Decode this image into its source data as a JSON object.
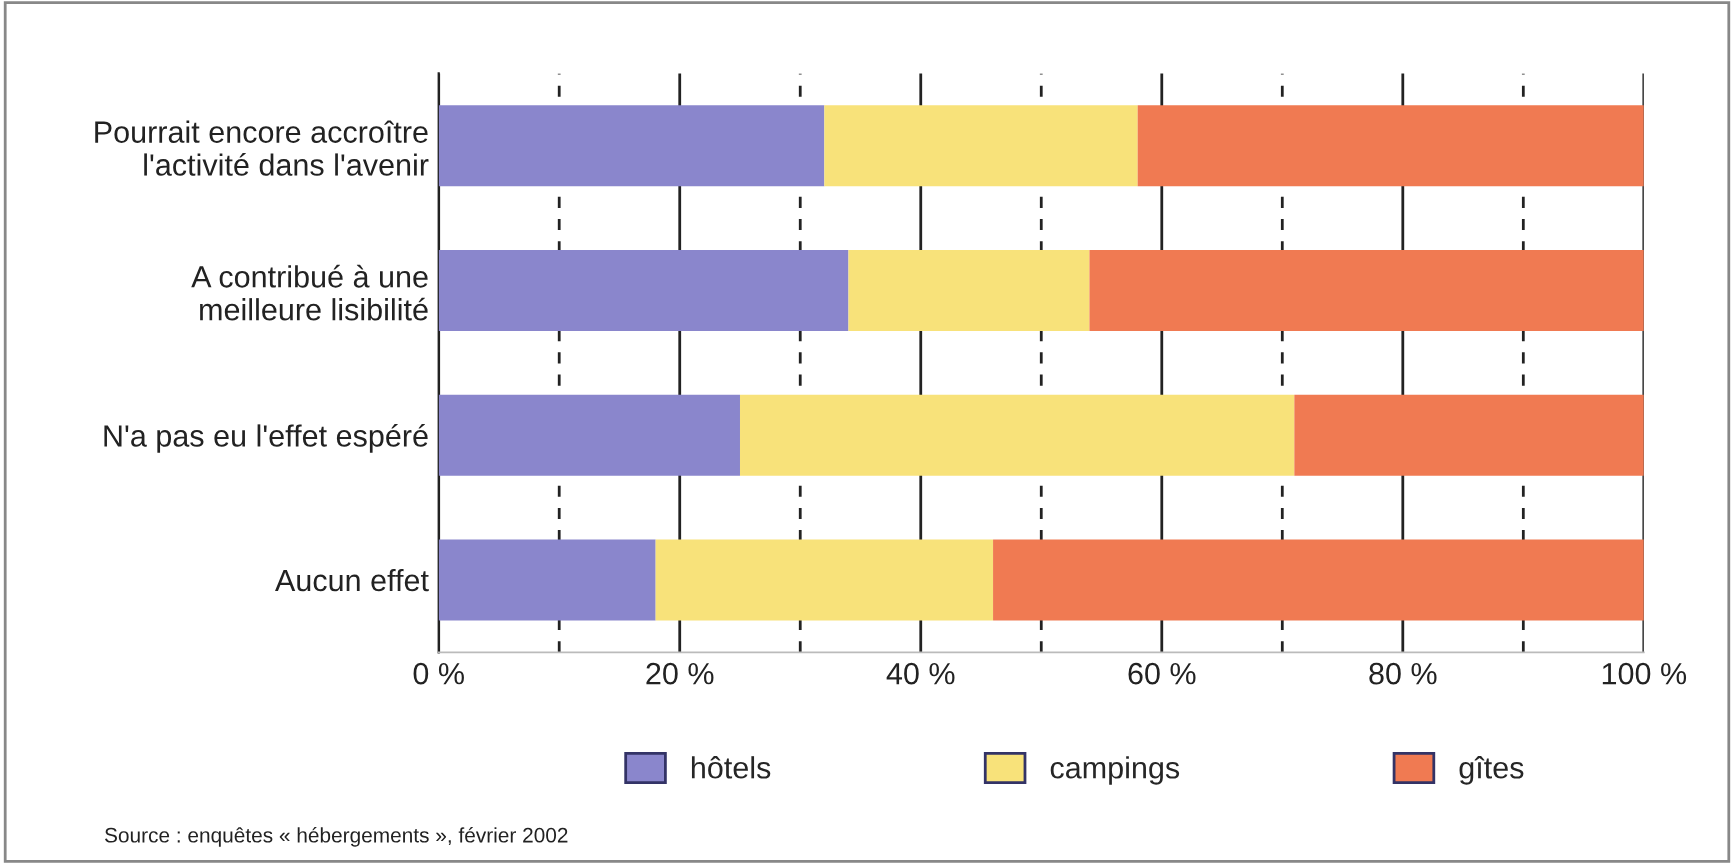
{
  "chart_data": {
    "type": "bar",
    "orientation": "horizontal",
    "stacked": true,
    "categories": [
      "Pourrait encore accroître\nl'activité dans l'avenir",
      "A contribué à une\nmeilleure lisibilité",
      "N'a pas eu l'effet espéré",
      "Aucun effet"
    ],
    "series": [
      {
        "name": "hôtels",
        "color": "#8a86cc",
        "values": [
          32,
          34,
          25,
          18
        ]
      },
      {
        "name": "campings",
        "color": "#f8e27a",
        "values": [
          26,
          20,
          46,
          28
        ]
      },
      {
        "name": "gîtes",
        "color": "#f07a52",
        "values": [
          42,
          46,
          29,
          54
        ]
      }
    ],
    "xlim": [
      0,
      100
    ],
    "xticks": [
      {
        "value": 0,
        "label": "0 %"
      },
      {
        "value": 10,
        "label": null
      },
      {
        "value": 20,
        "label": "20 %"
      },
      {
        "value": 30,
        "label": null
      },
      {
        "value": 40,
        "label": "40 %"
      },
      {
        "value": 50,
        "label": null
      },
      {
        "value": 60,
        "label": "60 %"
      },
      {
        "value": 70,
        "label": null
      },
      {
        "value": 80,
        "label": "80 %"
      },
      {
        "value": 90,
        "label": null
      },
      {
        "value": 100,
        "label": "100 %"
      }
    ],
    "grid": "x",
    "legend": "bottom",
    "annotations": [
      "Source : enquêtes « hébergements », février 2002"
    ]
  }
}
